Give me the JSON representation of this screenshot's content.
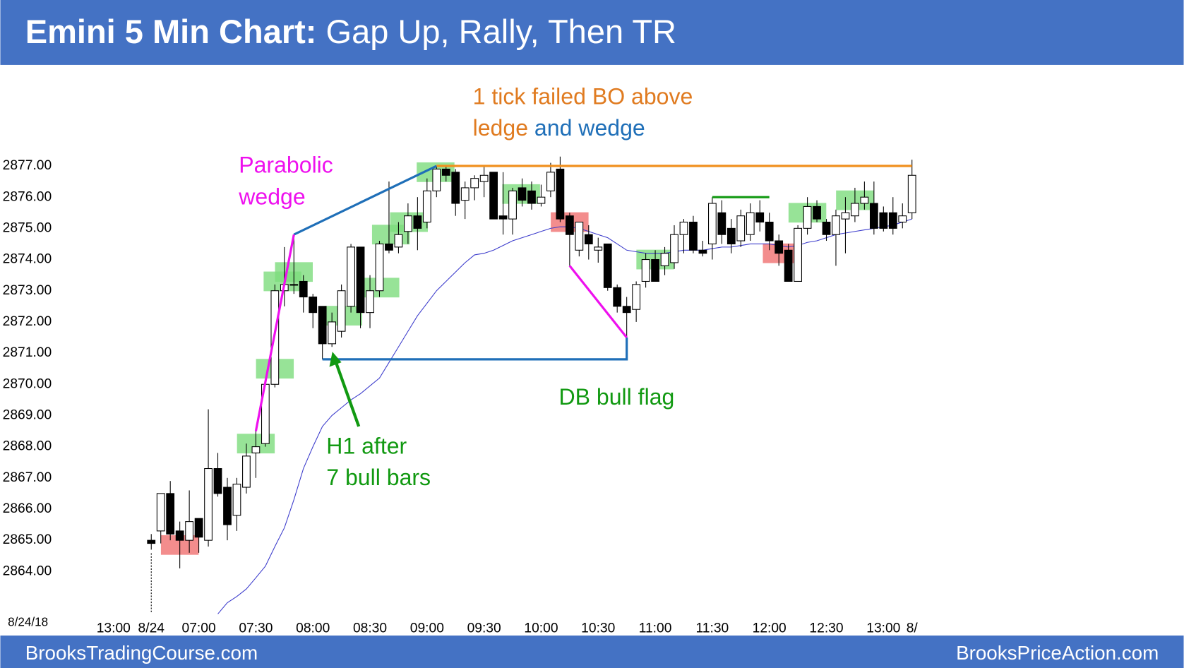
{
  "header": {
    "title_bold": "Emini 5 Min Chart:",
    "title": "Gap Up, Rally, Then TR"
  },
  "footer": {
    "left": "BrooksTradingCourse.com",
    "right": "BrooksPriceAction.com"
  },
  "chart_data": {
    "type": "candlestick",
    "date_label": "8/24/18",
    "prior_session_label": "13:00",
    "categories": [
      "8/24",
      null,
      null,
      null,
      null,
      "07:00",
      null,
      null,
      null,
      null,
      null,
      "07:30",
      null,
      null,
      null,
      null,
      null,
      "08:00",
      null,
      null,
      null,
      null,
      null,
      "08:30",
      null,
      null,
      null,
      null,
      null,
      "09:00",
      null,
      null,
      null,
      null,
      null,
      "09:30",
      null,
      null,
      null,
      null,
      null,
      "10:00",
      null,
      null,
      null,
      null,
      null,
      "10:30",
      null,
      null,
      null,
      null,
      null,
      "11:00",
      null,
      null,
      null,
      null,
      null,
      "11:30",
      null,
      null,
      null,
      null,
      null,
      "12:00",
      null,
      null,
      null,
      null,
      null,
      "12:30",
      null,
      null,
      null,
      null,
      null,
      "13:00",
      null,
      null,
      "8/"
    ],
    "candles": {
      "open": [
        2865,
        2865.3,
        2866.5,
        2865.3,
        2865,
        2865.7,
        2865,
        2867.3,
        2866.7,
        2865.8,
        2866.7,
        2867.8,
        2868.1,
        2870,
        2873,
        2873.2,
        2873.3,
        2872.8,
        2872.5,
        2871.3,
        2871.7,
        2872.5,
        2874.4,
        2872.3,
        2873,
        2874.5,
        2874.4,
        2874.9,
        2875.4,
        2875.2,
        2876.2,
        2876.9,
        2876.8,
        2875.9,
        2876.3,
        2876.5,
        2876.8,
        2875.4,
        2875.3,
        2876.3,
        2876.2,
        2875.8,
        2876.2,
        2876.9,
        2875.4,
        2874.3,
        2874.8,
        2874.3,
        2874.5,
        2873.1,
        2872.5,
        2872.4,
        2873.3,
        2874,
        2873.8,
        2873.9,
        2874.8,
        2875.2,
        2874.3,
        2874.5,
        2875.5,
        2875,
        2874.6,
        2874.8,
        2875.5,
        2875.2,
        2874.6,
        2874.3,
        2873.3,
        2875,
        2875.7,
        2875.2,
        2874.8,
        2875.3,
        2875.4,
        2875.8,
        2875.8,
        2875.5,
        2875.5,
        2875.2,
        2875.5
      ],
      "high": [
        2865.2,
        2866.5,
        2866.9,
        2865.6,
        2866.6,
        2865.7,
        2869.2,
        2867.8,
        2867,
        2867,
        2868.1,
        2868.5,
        2870.1,
        2873.2,
        2874.4,
        2874.8,
        2873.5,
        2872.9,
        2872.5,
        2872.3,
        2873.2,
        2874.5,
        2874.4,
        2873.5,
        2874.6,
        2876.5,
        2875.2,
        2875.8,
        2876,
        2876.6,
        2877,
        2877,
        2876.9,
        2876.5,
        2876.7,
        2877,
        2876.8,
        2876.8,
        2876.3,
        2876.6,
        2876.5,
        2876.4,
        2877.1,
        2877.3,
        2875.5,
        2875.2,
        2875.1,
        2874.7,
        2874.5,
        2873.2,
        2872.8,
        2873.3,
        2874.2,
        2874.3,
        2874.4,
        2875.1,
        2875.3,
        2875.4,
        2874.6,
        2876,
        2875.9,
        2875.3,
        2875.6,
        2875.8,
        2875.9,
        2875.5,
        2874.8,
        2874.5,
        2875.1,
        2876,
        2875.9,
        2875.3,
        2875.6,
        2876,
        2876.3,
        2876.5,
        2876.5,
        2875.7,
        2876,
        2875.8,
        2877.2
      ],
      "low": [
        2864.7,
        2864.9,
        2865,
        2864.1,
        2864.6,
        2864.6,
        2864.8,
        2866.4,
        2865,
        2865.3,
        2866.5,
        2867,
        2868,
        2869.9,
        2872.5,
        2872.9,
        2872.3,
        2871.8,
        2870.8,
        2871.2,
        2871.5,
        2872.3,
        2871.8,
        2871.8,
        2872.8,
        2874.2,
        2874.2,
        2874.5,
        2874.3,
        2875,
        2876,
        2876.5,
        2875.4,
        2875.3,
        2875.9,
        2876,
        2875.3,
        2874.8,
        2874.8,
        2875.7,
        2875.6,
        2875.7,
        2876,
        2875.2,
        2873.8,
        2874.1,
        2874,
        2873.9,
        2873,
        2872.3,
        2871.5,
        2872,
        2873.1,
        2873.3,
        2873.5,
        2873.7,
        2874.2,
        2874.2,
        2874.1,
        2874,
        2874.5,
        2874.2,
        2874.4,
        2874.6,
        2874.9,
        2874.3,
        2873.8,
        2873.3,
        2873.3,
        2874.8,
        2875.2,
        2874.6,
        2873.8,
        2874.2,
        2875.2,
        2875.6,
        2874.8,
        2874.9,
        2874.8,
        2875,
        2875.3
      ],
      "close": [
        2864.9,
        2866.5,
        2865.2,
        2865,
        2865.6,
        2865.1,
        2867.3,
        2866.5,
        2865.5,
        2866.8,
        2867.7,
        2868,
        2870,
        2873,
        2873.2,
        2873.2,
        2872.8,
        2872.3,
        2871.3,
        2872,
        2873,
        2874.4,
        2872.3,
        2873,
        2874.5,
        2874.3,
        2874.8,
        2875.4,
        2875,
        2876.2,
        2876.9,
        2876.7,
        2875.8,
        2876.3,
        2876.6,
        2876.7,
        2875.3,
        2875.3,
        2876.2,
        2875.9,
        2875.8,
        2876,
        2876.8,
        2875.3,
        2874.8,
        2875.2,
        2874.5,
        2874.4,
        2873.1,
        2872.5,
        2872.3,
        2873.2,
        2874,
        2873.3,
        2874.2,
        2874.8,
        2875.2,
        2874.3,
        2874.2,
        2875.8,
        2874.8,
        2874.5,
        2875.4,
        2875.5,
        2875.2,
        2874.6,
        2874.2,
        2873.3,
        2875,
        2875.7,
        2875.3,
        2874.8,
        2875.4,
        2875.5,
        2875.8,
        2876,
        2875,
        2875,
        2875,
        2875.4,
        2876.7
      ]
    },
    "up_color": "#ffffff",
    "down_color": "#000000",
    "ema": {
      "color": "#3c3ccc",
      "values": [
        null,
        null,
        null,
        null,
        null,
        null,
        null,
        2862.64,
        2863.0,
        2863.2,
        2863.44,
        2863.8,
        2864.17,
        2864.8,
        2865.4,
        2866.3,
        2867.3,
        2868.0,
        2868.65,
        2869.0,
        2869.25,
        2869.5,
        2869.7,
        2869.95,
        2870.2,
        2870.7,
        2871.2,
        2871.7,
        2872.2,
        2872.6,
        2873.0,
        2873.3,
        2873.6,
        2873.9,
        2874.15,
        2874.2,
        2874.3,
        2874.45,
        2874.6,
        2874.7,
        2874.8,
        2874.9,
        2875.0,
        2875.05,
        2875.05,
        2875.0,
        2874.9,
        2874.8,
        2874.7,
        2874.5,
        2874.3,
        2874.25,
        2874.2,
        2874.2,
        2874.2,
        2874.25,
        2874.3,
        2874.3,
        2874.3,
        2874.35,
        2874.4,
        2874.4,
        2874.45,
        2874.5,
        2874.5,
        2874.5,
        2874.45,
        2874.4,
        2874.45,
        2874.55,
        2874.6,
        2874.7,
        2874.8,
        2874.85,
        2874.9,
        2874.95,
        2875.0,
        2875.05,
        2875.1,
        2875.2,
        2875.3
      ]
    },
    "ylim": [
      2862.6,
      2879.9
    ],
    "yticks": [
      {
        "value": 2864,
        "label": "2864.00"
      },
      {
        "value": 2865,
        "label": "2865.00"
      },
      {
        "value": 2866,
        "label": "2866.00"
      },
      {
        "value": 2867,
        "label": "2867.00"
      },
      {
        "value": 2868,
        "label": "2868.00"
      },
      {
        "value": 2869,
        "label": "2869.00"
      },
      {
        "value": 2870,
        "label": "2870.00"
      },
      {
        "value": 2871,
        "label": "2871.00"
      },
      {
        "value": 2872,
        "label": "2872.00"
      },
      {
        "value": 2873,
        "label": "2873.00"
      },
      {
        "value": 2874,
        "label": "2874.00"
      },
      {
        "value": 2875,
        "label": "2875.00"
      },
      {
        "value": 2876,
        "label": "2876.00"
      },
      {
        "value": 2877,
        "label": "2877.00"
      }
    ],
    "grid": false,
    "zones": [
      {
        "bar": 3,
        "value": 2864.85,
        "color": "#f07070"
      },
      {
        "bar": 44,
        "value": 2875.2,
        "color": "#f07070"
      },
      {
        "bar": 66.3,
        "value": 2874.2,
        "color": "#f07070"
      },
      {
        "bar": 11,
        "value": 2868.1,
        "color": "#7ddc7d"
      },
      {
        "bar": 13,
        "value": 2870.5,
        "color": "#7ddc7d"
      },
      {
        "bar": 13.8,
        "value": 2873.3,
        "color": "#7ddc7d"
      },
      {
        "bar": 15,
        "value": 2873.6,
        "color": "#7ddc7d"
      },
      {
        "bar": 20.2,
        "value": 2872.2,
        "color": "#7ddc7d"
      },
      {
        "bar": 24.1,
        "value": 2873.1,
        "color": "#7ddc7d"
      },
      {
        "bar": 25.2,
        "value": 2874.8,
        "color": "#7ddc7d"
      },
      {
        "bar": 27.1,
        "value": 2875.2,
        "color": "#7ddc7d"
      },
      {
        "bar": 29.9,
        "value": 2876.8,
        "color": "#7ddc7d"
      },
      {
        "bar": 38.9,
        "value": 2876.1,
        "color": "#7ddc7d"
      },
      {
        "bar": 53,
        "value": 2874.0,
        "color": "#7ddc7d"
      },
      {
        "bar": 69,
        "value": 2875.5,
        "color": "#7ddc7d"
      },
      {
        "bar": 74,
        "value": 2875.9,
        "color": "#7ddc7d"
      }
    ],
    "lines": [
      {
        "color": "#f0901e",
        "points": [
          [
            30,
            2877
          ],
          [
            80,
            2877
          ]
        ]
      },
      {
        "color": "#1f6fb8",
        "points": [
          [
            15,
            2874.8
          ],
          [
            30,
            2877
          ]
        ]
      },
      {
        "color": "#ee10ee",
        "points": [
          [
            11,
            2868.5
          ],
          [
            15,
            2874.8
          ]
        ]
      },
      {
        "color": "#1f6fb8",
        "points": [
          [
            18,
            2870.8
          ],
          [
            50,
            2870.8
          ],
          [
            50,
            2871.5
          ]
        ]
      },
      {
        "color": "#ee10ee",
        "points": [
          [
            44,
            2873.8
          ],
          [
            50,
            2871.5
          ]
        ]
      },
      {
        "color": "#119911",
        "points": [
          [
            59,
            2876
          ],
          [
            65,
            2876
          ]
        ]
      }
    ],
    "annotations": {
      "failed_bo_1": "1 tick failed BO above",
      "failed_bo_2": "ledge",
      "failed_bo_3": "and wedge",
      "parabolic_1": "Parabolic",
      "parabolic_2": "wedge",
      "h1_1": "H1 after",
      "h1_2": "7 bull bars",
      "db": "DB bull flag"
    }
  }
}
